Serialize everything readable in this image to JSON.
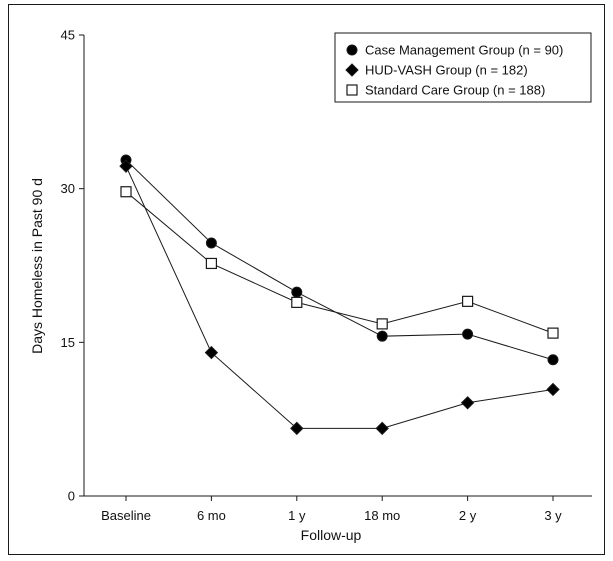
{
  "chart_data": {
    "type": "line",
    "title": "",
    "xlabel": "Follow-up",
    "ylabel": "Days Homeless in Past 90 d",
    "categories": [
      "Baseline",
      "6 mo",
      "1 y",
      "18 mo",
      "2 y",
      "3 y"
    ],
    "ylim": [
      0,
      45
    ],
    "yticks": [
      0,
      15,
      30,
      45
    ],
    "grid": false,
    "legend_position": "top-right",
    "series": [
      {
        "name": "Case Management Group (n = 90)",
        "marker": "circle-filled",
        "values": [
          32.8,
          24.7,
          19.9,
          15.6,
          15.8,
          13.3
        ]
      },
      {
        "name": "HUD-VASH Group (n = 182)",
        "marker": "diamond-filled",
        "values": [
          32.2,
          14.0,
          6.6,
          6.6,
          9.1,
          10.4
        ]
      },
      {
        "name": "Standard Care Group (n = 188)",
        "marker": "square-open",
        "values": [
          29.7,
          22.7,
          18.9,
          16.8,
          19.0,
          15.9
        ]
      }
    ],
    "colors": {
      "line": "#1a1a1a",
      "marker_fill": "#000000",
      "open_fill": "#ffffff"
    }
  }
}
